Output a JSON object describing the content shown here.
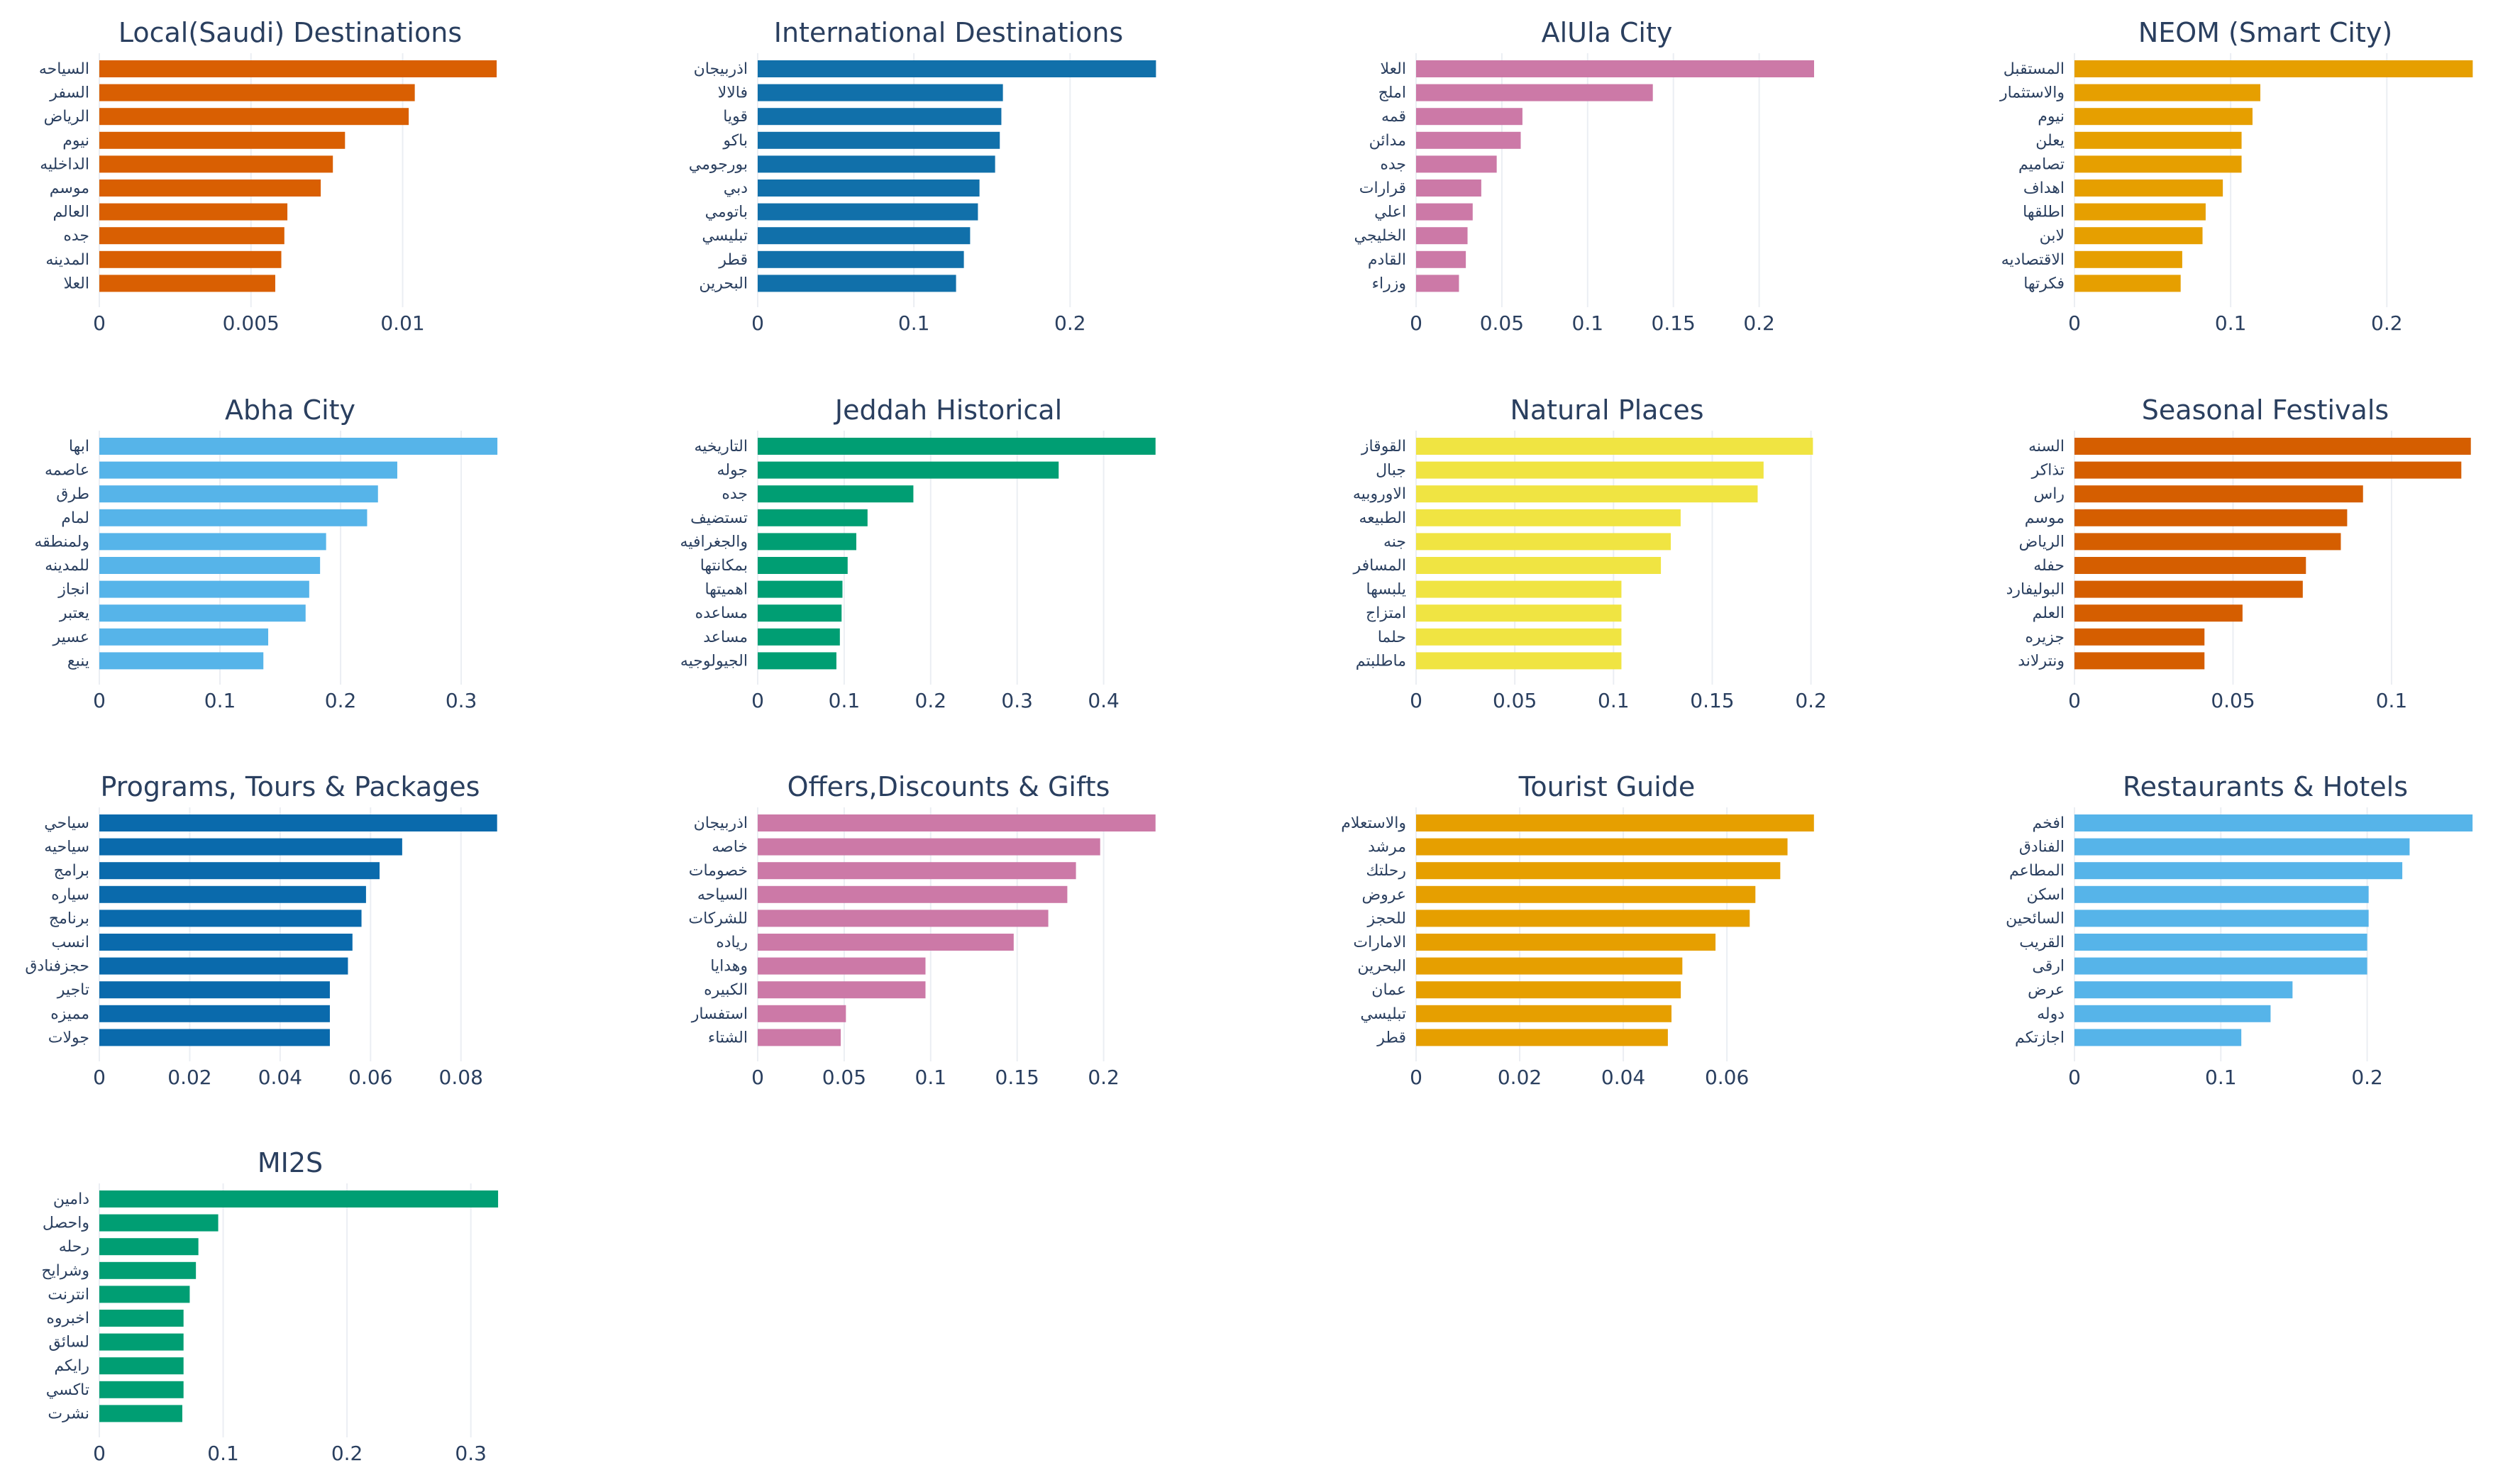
{
  "chart_data": [
    {
      "type": "bar",
      "orientation": "h",
      "title": "Local(Saudi) Destinations",
      "color": "#d95f02",
      "categories": [
        "السياحه",
        "السفر",
        "الرياض",
        "نيوم",
        "الداخليه",
        "موسم",
        "العالم",
        "جده",
        "المدينه",
        "العلا"
      ],
      "values": [
        0.0131,
        0.0104,
        0.0102,
        0.0081,
        0.0077,
        0.0073,
        0.0062,
        0.0061,
        0.006,
        0.0058
      ],
      "xlim": [
        0,
        0.0138
      ],
      "xticks": [
        0,
        0.005,
        0.01
      ],
      "xtick_labels": [
        "0",
        "0.005",
        "0.01"
      ]
    },
    {
      "type": "bar",
      "orientation": "h",
      "title": "International Destinations",
      "color": "#1170aa",
      "categories": [
        "اذربيجان",
        "فالالا",
        "قويا",
        "باكو",
        "بورجومي",
        "دبي",
        "باتومي",
        "تبليسي",
        "قطر",
        "البحرين"
      ],
      "values": [
        0.255,
        0.157,
        0.156,
        0.155,
        0.152,
        0.142,
        0.141,
        0.136,
        0.132,
        0.127
      ],
      "xlim": [
        0,
        0.268
      ],
      "xticks": [
        0,
        0.1,
        0.2
      ],
      "xtick_labels": [
        "0",
        "0.1",
        "0.2"
      ]
    },
    {
      "type": "bar",
      "orientation": "h",
      "title": "AlUla City",
      "color": "#cc79a7",
      "categories": [
        "العلا",
        "املج",
        "قمه",
        "مدائن",
        "جده",
        "قرارات",
        "اعلي",
        "الخليجي",
        "القادم",
        "وزراء"
      ],
      "values": [
        0.232,
        0.138,
        0.062,
        0.061,
        0.047,
        0.038,
        0.033,
        0.03,
        0.029,
        0.025
      ],
      "xlim": [
        0,
        0.244
      ],
      "xticks": [
        0,
        0.05,
        0.1,
        0.15,
        0.2
      ],
      "xtick_labels": [
        "0",
        "0.05",
        "0.1",
        "0.15",
        "0.2"
      ]
    },
    {
      "type": "bar",
      "orientation": "h",
      "title": "NEOM (Smart City)",
      "color": "#e69f00",
      "categories": [
        "المستقبل",
        "والاستثمار",
        "نيوم",
        "يعلن",
        "تصاميم",
        "اهداف",
        "اطلقها",
        "لابن",
        "الاقتصاديه",
        "فكرتها"
      ],
      "values": [
        0.255,
        0.119,
        0.114,
        0.107,
        0.107,
        0.095,
        0.084,
        0.082,
        0.069,
        0.068
      ],
      "xlim": [
        0,
        0.268
      ],
      "xticks": [
        0,
        0.1,
        0.2
      ],
      "xtick_labels": [
        "0",
        "0.1",
        "0.2"
      ]
    },
    {
      "type": "bar",
      "orientation": "h",
      "title": "Abha City",
      "color": "#56b4e9",
      "categories": [
        "ابها",
        "عاصمه",
        "طرق",
        "لمام",
        "ولمنطقه",
        "للمدينه",
        "انجاز",
        "يعتبر",
        "عسير",
        "ينبع"
      ],
      "values": [
        0.33,
        0.247,
        0.231,
        0.222,
        0.188,
        0.183,
        0.174,
        0.171,
        0.14,
        0.136
      ],
      "xlim": [
        0,
        0.347
      ],
      "xticks": [
        0,
        0.1,
        0.2,
        0.3
      ],
      "xtick_labels": [
        "0",
        "0.1",
        "0.2",
        "0.3"
      ]
    },
    {
      "type": "bar",
      "orientation": "h",
      "title": "Jeddah Historical",
      "color": "#009e73",
      "categories": [
        "التاريخيه",
        "جوله",
        "جده",
        "تستضيف",
        "والجغرافيه",
        "بمكانتها",
        "اهميتها",
        "مساعده",
        "مساعد",
        "الجيولوجيه"
      ],
      "values": [
        0.46,
        0.348,
        0.18,
        0.127,
        0.114,
        0.104,
        0.098,
        0.097,
        0.095,
        0.091
      ],
      "xlim": [
        0,
        0.484
      ],
      "xticks": [
        0,
        0.1,
        0.2,
        0.3,
        0.4
      ],
      "xtick_labels": [
        "0",
        "0.1",
        "0.2",
        "0.3",
        "0.4"
      ]
    },
    {
      "type": "bar",
      "orientation": "h",
      "title": "Natural Places",
      "color": "#f0e442",
      "categories": [
        "القوقاز",
        "جبال",
        "الاوروبيه",
        "الطبيعه",
        "جنه",
        "المسافر",
        "يلبسها",
        "امتزاج",
        "حلما",
        "ماطلبتم"
      ],
      "values": [
        0.201,
        0.176,
        0.173,
        0.134,
        0.129,
        0.124,
        0.104,
        0.104,
        0.104,
        0.104
      ],
      "xlim": [
        0,
        0.212
      ],
      "xticks": [
        0,
        0.05,
        0.1,
        0.15,
        0.2
      ],
      "xtick_labels": [
        "0",
        "0.05",
        "0.1",
        "0.15",
        "0.2"
      ]
    },
    {
      "type": "bar",
      "orientation": "h",
      "title": "Seasonal Festivals",
      "color": "#d55e00",
      "categories": [
        "السنه",
        "تذاكر",
        "راس",
        "موسم",
        "الرياض",
        "حفله",
        "البوليفارد",
        "العلم",
        "جزيره",
        "ونترلاند"
      ],
      "values": [
        0.125,
        0.122,
        0.091,
        0.086,
        0.084,
        0.073,
        0.072,
        0.053,
        0.041,
        0.041
      ],
      "xlim": [
        0,
        0.132
      ],
      "xticks": [
        0,
        0.05,
        0.1
      ],
      "xtick_labels": [
        "0",
        "0.05",
        "0.1"
      ]
    },
    {
      "type": "bar",
      "orientation": "h",
      "title": "Programs, Tours & Packages",
      "color": "#0a6aac",
      "categories": [
        "سياحي",
        "سياحيه",
        "برامج",
        "سياره",
        "برنامج",
        "انسب",
        "حجزفنادق",
        "تاجير",
        "مميزه",
        "جولات"
      ],
      "values": [
        0.088,
        0.067,
        0.062,
        0.059,
        0.058,
        0.056,
        0.055,
        0.051,
        0.051,
        0.051
      ],
      "xlim": [
        0,
        0.0926
      ],
      "xticks": [
        0,
        0.02,
        0.04,
        0.06,
        0.08
      ],
      "xtick_labels": [
        "0",
        "0.02",
        "0.04",
        "0.06",
        "0.08"
      ]
    },
    {
      "type": "bar",
      "orientation": "h",
      "title": "Offers,Discounts & Gifts",
      "color": "#cc79a7",
      "categories": [
        "اذربيجان",
        "خاصه",
        "خصومات",
        "السياحه",
        "للشركات",
        "رياده",
        "وهدايا",
        "الكبيره",
        "استفسار",
        "الشتاء"
      ],
      "values": [
        0.23,
        0.198,
        0.184,
        0.179,
        0.168,
        0.148,
        0.097,
        0.097,
        0.051,
        0.048
      ],
      "xlim": [
        0,
        0.242
      ],
      "xticks": [
        0,
        0.05,
        0.1,
        0.15,
        0.2
      ],
      "xtick_labels": [
        "0",
        "0.05",
        "0.1",
        "0.15",
        "0.2"
      ]
    },
    {
      "type": "bar",
      "orientation": "h",
      "title": "Tourist Guide",
      "color": "#e69f00",
      "categories": [
        "والاستعلام",
        "مرشد",
        "رحلتك",
        "عروض",
        "للحجز",
        "الامارات",
        "البحرين",
        "عمان",
        "تبليسي",
        "قطر"
      ],
      "values": [
        0.0768,
        0.0717,
        0.0703,
        0.0655,
        0.0644,
        0.0578,
        0.0514,
        0.0511,
        0.0493,
        0.0486
      ],
      "xlim": [
        0,
        0.0808
      ],
      "xticks": [
        0,
        0.02,
        0.04,
        0.06
      ],
      "xtick_labels": [
        "0",
        "0.02",
        "0.04",
        "0.06"
      ]
    },
    {
      "type": "bar",
      "orientation": "h",
      "title": "Restaurants & Hotels",
      "color": "#56b4e9",
      "categories": [
        "افخم",
        "الفنادق",
        "المطاعم",
        "اسكن",
        "السائحين",
        "القريب",
        "ارقى",
        "عرض",
        "دوله",
        "اجازتكم"
      ],
      "values": [
        0.272,
        0.229,
        0.224,
        0.201,
        0.201,
        0.2,
        0.2,
        0.149,
        0.134,
        0.114
      ],
      "xlim": [
        0,
        0.286
      ],
      "xticks": [
        0,
        0.1,
        0.2
      ],
      "xtick_labels": [
        "0",
        "0.1",
        "0.2"
      ]
    },
    {
      "type": "bar",
      "orientation": "h",
      "title": "MI2S",
      "color": "#009e73",
      "categories": [
        "دامين",
        "واحصل",
        "رحله",
        "وشرايح",
        "انترنت",
        "اخبروه",
        "لسائق",
        "رايكم",
        "تاكسي",
        "نشرت"
      ],
      "values": [
        0.322,
        0.096,
        0.08,
        0.078,
        0.073,
        0.068,
        0.068,
        0.068,
        0.068,
        0.067
      ],
      "xlim": [
        0,
        0.338
      ],
      "xticks": [
        0,
        0.1,
        0.2,
        0.3
      ],
      "xtick_labels": [
        "0",
        "0.1",
        "0.2",
        "0.3"
      ]
    }
  ]
}
